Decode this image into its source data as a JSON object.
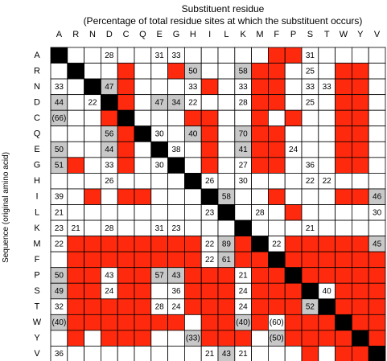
{
  "chart_data": {
    "type": "heatmap",
    "title": "Substituent residue",
    "subtitle": "(Percentage of total residue sites at which the substituent occurs)",
    "ylabel": "Sequence (original amino acid)",
    "columns": [
      "A",
      "R",
      "N",
      "D",
      "C",
      "Q",
      "E",
      "G",
      "H",
      "I",
      "L",
      "K",
      "M",
      "F",
      "P",
      "S",
      "T",
      "W",
      "Y",
      "V"
    ],
    "rows": [
      "A",
      "R",
      "N",
      "D",
      "C",
      "Q",
      "E",
      "G",
      "H",
      "I",
      "L",
      "K",
      "M",
      "F",
      "P",
      "S",
      "T",
      "W",
      "Y",
      "V"
    ],
    "legend": {
      "black": "same residue (diagonal)",
      "red": "substitution not observed",
      "gray": "labeled value in gray cell",
      "white": "substitution observed"
    },
    "colors": {
      "red": "#ff2a0e",
      "gray": "#c8c8c8",
      "black": "#000000",
      "white": "#ffffff",
      "grid": "#000000"
    },
    "fill": [
      "KWWWWWWWWWWWWRRWWWWW",
      "WKWWRWWRGWWGRRWWWRRW",
      "WWKGRWWWWRWWRRWWWRRW",
      "GWWKRWGGWWWWRRWWWRRW",
      "GWWRKWWWRRWWRWRWWRRW",
      "WWWGRKWWGRWGRRWWWRRW",
      "GWWGRWKWWRWGRRWWWRRW",
      "GRWWRWWKWRWWRRWWWRRW",
      "WWWWWWWWKWWWWWWWWWWW",
      "WWRWRRWWWKGWWRWWWRRG",
      "WWWWWWWWWWKWWWRWWWWW",
      "WWWWWWWWWWWKWWWWWWWW",
      "WRRRRRRRRWGRKWRRRRRG",
      "WRRRRRRRRWGRRKRRRRRR",
      "GRRWRRGGRRRWRRKRRRRR",
      "GRRWRRWWRRRWRRRKWRRR",
      "WRRRRRWWRRRWRRRGKRRR",
      "GRRRRRRRWRRGRWRRRKRR",
      "WRWRRRWWGRRRWGRRRRKR",
      "WWWWWWWWWWGWWWWRWRRK"
    ],
    "labels": [
      {
        "row": "A",
        "col": "D",
        "value": "28"
      },
      {
        "row": "A",
        "col": "E",
        "value": "31"
      },
      {
        "row": "A",
        "col": "G",
        "value": "33"
      },
      {
        "row": "A",
        "col": "S",
        "value": "31"
      },
      {
        "row": "R",
        "col": "H",
        "value": "50"
      },
      {
        "row": "R",
        "col": "K",
        "value": "58"
      },
      {
        "row": "R",
        "col": "S",
        "value": "25"
      },
      {
        "row": "N",
        "col": "A",
        "value": "33"
      },
      {
        "row": "N",
        "col": "D",
        "value": "47"
      },
      {
        "row": "N",
        "col": "H",
        "value": "33"
      },
      {
        "row": "N",
        "col": "K",
        "value": "33"
      },
      {
        "row": "N",
        "col": "S",
        "value": "33"
      },
      {
        "row": "N",
        "col": "T",
        "value": "33"
      },
      {
        "row": "D",
        "col": "A",
        "value": "44"
      },
      {
        "row": "D",
        "col": "N",
        "value": "22"
      },
      {
        "row": "D",
        "col": "E",
        "value": "47"
      },
      {
        "row": "D",
        "col": "G",
        "value": "34"
      },
      {
        "row": "D",
        "col": "H",
        "value": "22"
      },
      {
        "row": "D",
        "col": "K",
        "value": "28"
      },
      {
        "row": "D",
        "col": "S",
        "value": "25"
      },
      {
        "row": "C",
        "col": "A",
        "value": "(66)"
      },
      {
        "row": "Q",
        "col": "D",
        "value": "56"
      },
      {
        "row": "Q",
        "col": "E",
        "value": "30"
      },
      {
        "row": "Q",
        "col": "H",
        "value": "40"
      },
      {
        "row": "Q",
        "col": "K",
        "value": "70"
      },
      {
        "row": "E",
        "col": "A",
        "value": "50"
      },
      {
        "row": "E",
        "col": "D",
        "value": "44"
      },
      {
        "row": "E",
        "col": "G",
        "value": "38"
      },
      {
        "row": "E",
        "col": "K",
        "value": "41"
      },
      {
        "row": "E",
        "col": "P",
        "value": "24"
      },
      {
        "row": "G",
        "col": "A",
        "value": "51"
      },
      {
        "row": "G",
        "col": "D",
        "value": "33"
      },
      {
        "row": "G",
        "col": "E",
        "value": "30"
      },
      {
        "row": "G",
        "col": "K",
        "value": "27"
      },
      {
        "row": "G",
        "col": "S",
        "value": "36"
      },
      {
        "row": "H",
        "col": "D",
        "value": "26"
      },
      {
        "row": "H",
        "col": "I",
        "value": "26"
      },
      {
        "row": "H",
        "col": "K",
        "value": "30"
      },
      {
        "row": "H",
        "col": "S",
        "value": "22"
      },
      {
        "row": "H",
        "col": "T",
        "value": "22"
      },
      {
        "row": "I",
        "col": "A",
        "value": "39"
      },
      {
        "row": "I",
        "col": "L",
        "value": "58"
      },
      {
        "row": "I",
        "col": "V",
        "value": "46"
      },
      {
        "row": "L",
        "col": "A",
        "value": "21"
      },
      {
        "row": "L",
        "col": "I",
        "value": "23"
      },
      {
        "row": "L",
        "col": "M",
        "value": "28"
      },
      {
        "row": "L",
        "col": "V",
        "value": "30"
      },
      {
        "row": "K",
        "col": "A",
        "value": "23"
      },
      {
        "row": "K",
        "col": "R",
        "value": "21"
      },
      {
        "row": "K",
        "col": "D",
        "value": "28"
      },
      {
        "row": "K",
        "col": "E",
        "value": "31"
      },
      {
        "row": "K",
        "col": "G",
        "value": "23"
      },
      {
        "row": "K",
        "col": "S",
        "value": "21"
      },
      {
        "row": "M",
        "col": "A",
        "value": "22"
      },
      {
        "row": "M",
        "col": "I",
        "value": "22"
      },
      {
        "row": "M",
        "col": "L",
        "value": "89"
      },
      {
        "row": "M",
        "col": "F",
        "value": "22"
      },
      {
        "row": "M",
        "col": "V",
        "value": "45"
      },
      {
        "row": "F",
        "col": "I",
        "value": "22"
      },
      {
        "row": "F",
        "col": "L",
        "value": "61"
      },
      {
        "row": "P",
        "col": "A",
        "value": "50"
      },
      {
        "row": "P",
        "col": "D",
        "value": "43"
      },
      {
        "row": "P",
        "col": "E",
        "value": "57"
      },
      {
        "row": "P",
        "col": "G",
        "value": "43"
      },
      {
        "row": "P",
        "col": "K",
        "value": "21"
      },
      {
        "row": "S",
        "col": "A",
        "value": "49"
      },
      {
        "row": "S",
        "col": "D",
        "value": "24"
      },
      {
        "row": "S",
        "col": "G",
        "value": "36"
      },
      {
        "row": "S",
        "col": "K",
        "value": "24"
      },
      {
        "row": "S",
        "col": "T",
        "value": "40"
      },
      {
        "row": "T",
        "col": "A",
        "value": "32"
      },
      {
        "row": "T",
        "col": "E",
        "value": "28"
      },
      {
        "row": "T",
        "col": "G",
        "value": "24"
      },
      {
        "row": "T",
        "col": "K",
        "value": "24"
      },
      {
        "row": "T",
        "col": "S",
        "value": "52"
      },
      {
        "row": "W",
        "col": "A",
        "value": "(40)"
      },
      {
        "row": "W",
        "col": "K",
        "value": "(40)"
      },
      {
        "row": "W",
        "col": "F",
        "value": "(60)"
      },
      {
        "row": "Y",
        "col": "H",
        "value": "(33)"
      },
      {
        "row": "Y",
        "col": "F",
        "value": "(50)"
      },
      {
        "row": "V",
        "col": "A",
        "value": "36"
      },
      {
        "row": "V",
        "col": "I",
        "value": "21"
      },
      {
        "row": "V",
        "col": "L",
        "value": "43"
      },
      {
        "row": "V",
        "col": "K",
        "value": "21"
      }
    ]
  }
}
